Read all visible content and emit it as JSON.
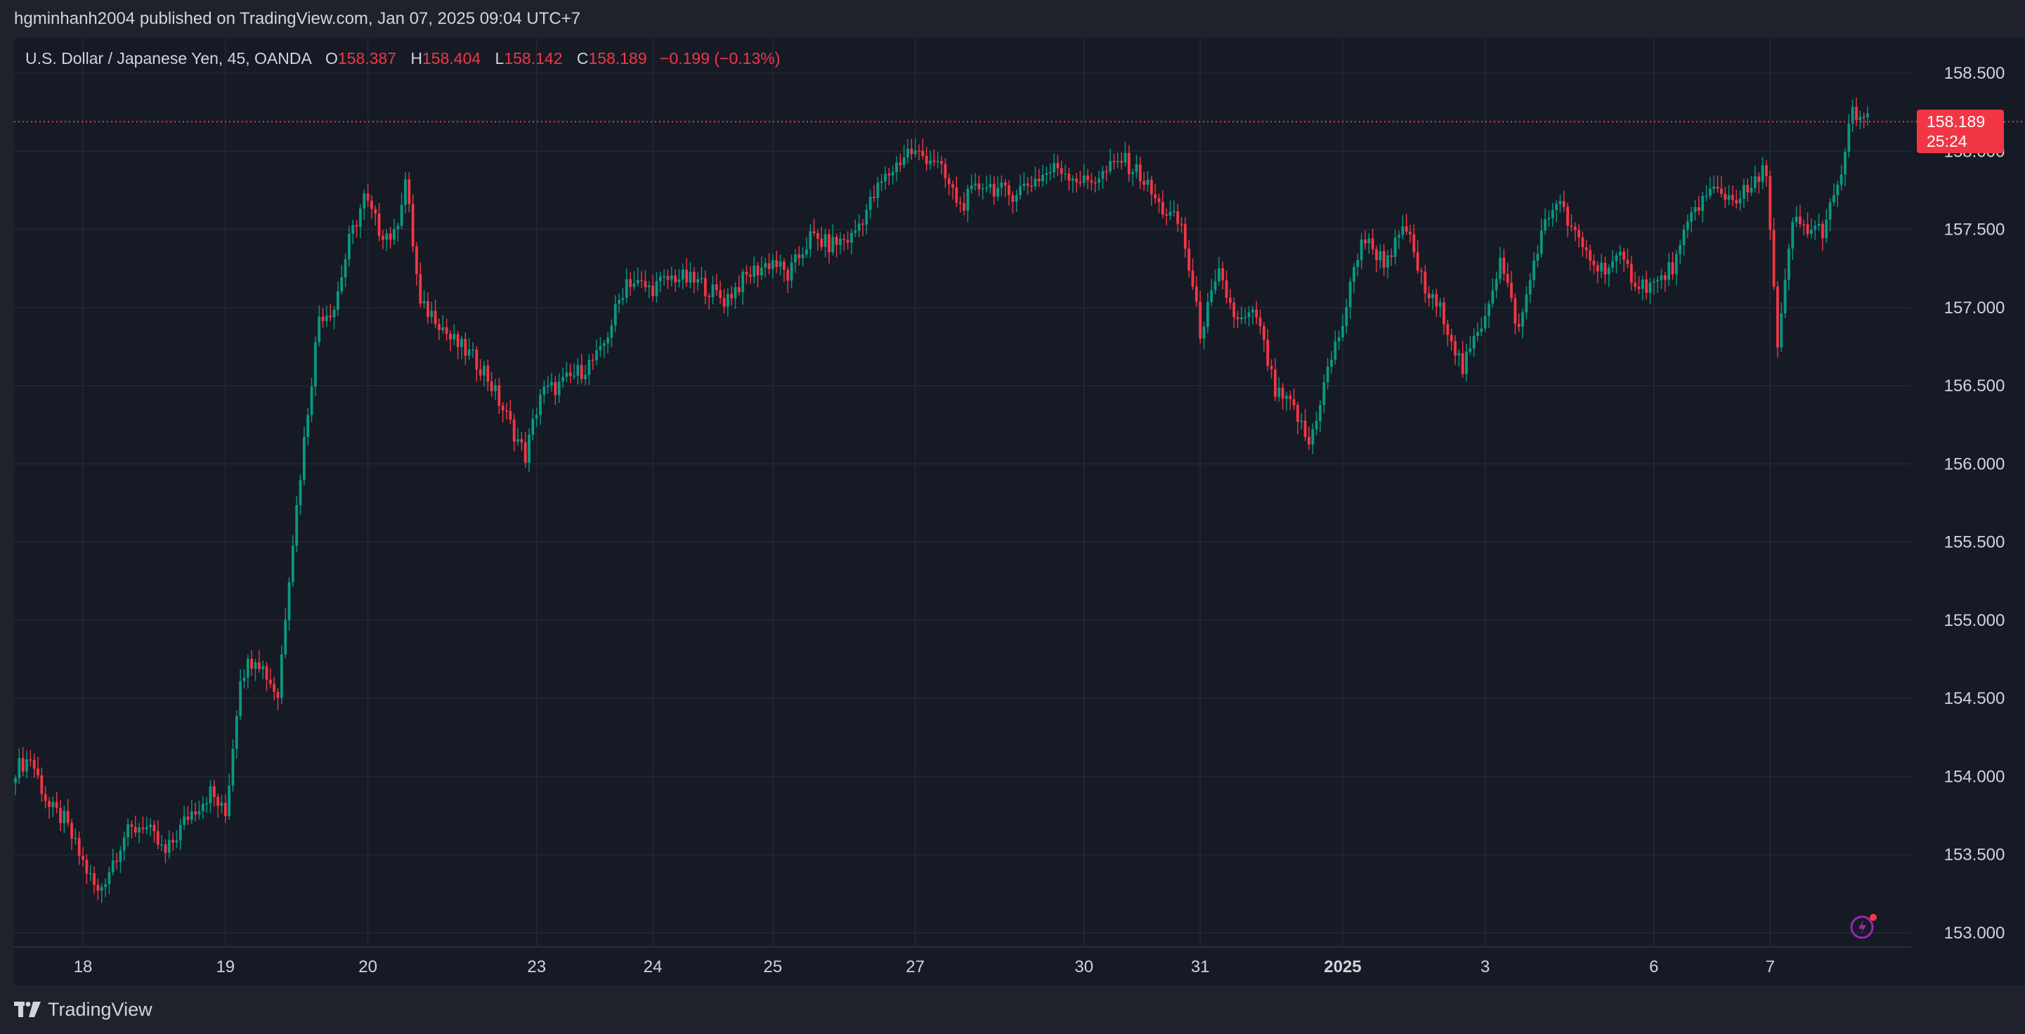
{
  "header": {
    "published_text": "hgminhanh2004 published on TradingView.com, Jan 07, 2025 09:04 UTC+7"
  },
  "legend": {
    "symbol": "U.S. Dollar / Japanese Yen, 45, OANDA",
    "o_label": "O",
    "o_value": "158.387",
    "h_label": "H",
    "h_value": "158.404",
    "l_label": "L",
    "l_value": "158.142",
    "c_label": "C",
    "c_value": "158.189",
    "change": "−0.199 (−0.13%)"
  },
  "last_price": {
    "price": "158.189",
    "countdown": "25:24"
  },
  "footer": {
    "brand": "TradingView"
  },
  "colors": {
    "background": "#161a25",
    "frame": "#1f222b",
    "grid": "#242834",
    "up": "#089981",
    "down": "#f23645",
    "text": "#d1d4dc",
    "accent": "#9c27b0"
  },
  "icons": {
    "brand": "tradingview-logo-icon",
    "alert": "lightning-icon"
  },
  "chart_data": {
    "type": "candlestick",
    "title": "U.S. Dollar / Japanese Yen, 45, OANDA",
    "ylim": [
      152.9,
      158.75
    ],
    "y_ticks": [
      "158.500",
      "158.000",
      "157.500",
      "157.000",
      "156.500",
      "156.000",
      "155.500",
      "155.000",
      "154.500",
      "154.000",
      "153.500",
      "153.000"
    ],
    "x_ticks": [
      {
        "label": "18",
        "bold": false,
        "index": 18
      },
      {
        "label": "19",
        "bold": false,
        "index": 56
      },
      {
        "label": "20",
        "bold": false,
        "index": 94
      },
      {
        "label": "23",
        "bold": false,
        "index": 139
      },
      {
        "label": "24",
        "bold": false,
        "index": 170
      },
      {
        "label": "25",
        "bold": false,
        "index": 202
      },
      {
        "label": "27",
        "bold": false,
        "index": 240
      },
      {
        "label": "30",
        "bold": false,
        "index": 285
      },
      {
        "label": "31",
        "bold": false,
        "index": 316
      },
      {
        "label": "2025",
        "bold": true,
        "index": 354
      },
      {
        "label": "3",
        "bold": false,
        "index": 392
      },
      {
        "label": "6",
        "bold": false,
        "index": 437
      },
      {
        "label": "7",
        "bold": false,
        "index": 468
      }
    ],
    "grid": true,
    "last_price_line": 158.189,
    "anchors": [
      [
        0,
        154.05
      ],
      [
        4,
        154.12
      ],
      [
        9,
        153.8
      ],
      [
        13,
        153.72
      ],
      [
        17,
        153.5
      ],
      [
        22,
        153.25
      ],
      [
        29,
        153.62
      ],
      [
        34,
        153.7
      ],
      [
        40,
        153.5
      ],
      [
        46,
        153.75
      ],
      [
        52,
        153.9
      ],
      [
        56,
        153.75
      ],
      [
        60,
        154.65
      ],
      [
        64,
        154.78
      ],
      [
        70,
        154.52
      ],
      [
        73,
        155.3
      ],
      [
        77,
        156.15
      ],
      [
        81,
        156.95
      ],
      [
        85,
        157.0
      ],
      [
        89,
        157.42
      ],
      [
        93,
        157.7
      ],
      [
        97,
        157.5
      ],
      [
        101,
        157.45
      ],
      [
        104,
        157.82
      ],
      [
        108,
        157.0
      ],
      [
        112,
        156.95
      ],
      [
        116,
        156.8
      ],
      [
        121,
        156.7
      ],
      [
        125,
        156.6
      ],
      [
        131,
        156.3
      ],
      [
        136,
        156.05
      ],
      [
        140,
        156.45
      ],
      [
        145,
        156.5
      ],
      [
        151,
        156.6
      ],
      [
        156,
        156.7
      ],
      [
        163,
        157.18
      ],
      [
        169,
        157.12
      ],
      [
        176,
        157.2
      ],
      [
        183,
        157.15
      ],
      [
        189,
        157.05
      ],
      [
        196,
        157.22
      ],
      [
        202,
        157.3
      ],
      [
        206,
        157.2
      ],
      [
        212,
        157.45
      ],
      [
        217,
        157.4
      ],
      [
        223,
        157.45
      ],
      [
        231,
        157.8
      ],
      [
        238,
        158.0
      ],
      [
        245,
        157.95
      ],
      [
        252,
        157.65
      ],
      [
        258,
        157.8
      ],
      [
        265,
        157.72
      ],
      [
        272,
        157.82
      ],
      [
        278,
        157.9
      ],
      [
        285,
        157.8
      ],
      [
        290,
        157.85
      ],
      [
        295,
        157.95
      ],
      [
        300,
        157.85
      ],
      [
        305,
        157.65
      ],
      [
        311,
        157.52
      ],
      [
        316,
        156.85
      ],
      [
        321,
        157.2
      ],
      [
        326,
        156.9
      ],
      [
        331,
        156.95
      ],
      [
        336,
        156.45
      ],
      [
        341,
        156.35
      ],
      [
        345,
        156.12
      ],
      [
        350,
        156.6
      ],
      [
        354,
        156.9
      ],
      [
        359,
        157.45
      ],
      [
        365,
        157.3
      ],
      [
        371,
        157.5
      ],
      [
        376,
        157.1
      ],
      [
        381,
        156.95
      ],
      [
        386,
        156.6
      ],
      [
        391,
        156.9
      ],
      [
        396,
        157.3
      ],
      [
        401,
        156.85
      ],
      [
        406,
        157.4
      ],
      [
        411,
        157.7
      ],
      [
        416,
        157.45
      ],
      [
        422,
        157.25
      ],
      [
        428,
        157.3
      ],
      [
        433,
        157.15
      ],
      [
        438,
        157.15
      ],
      [
        443,
        157.3
      ],
      [
        448,
        157.65
      ],
      [
        453,
        157.75
      ],
      [
        458,
        157.7
      ],
      [
        463,
        157.75
      ],
      [
        467,
        157.9
      ],
      [
        470,
        156.72
      ],
      [
        474,
        157.55
      ],
      [
        478,
        157.5
      ],
      [
        482,
        157.5
      ],
      [
        486,
        157.75
      ],
      [
        490,
        158.25
      ],
      [
        494,
        158.189
      ]
    ]
  }
}
